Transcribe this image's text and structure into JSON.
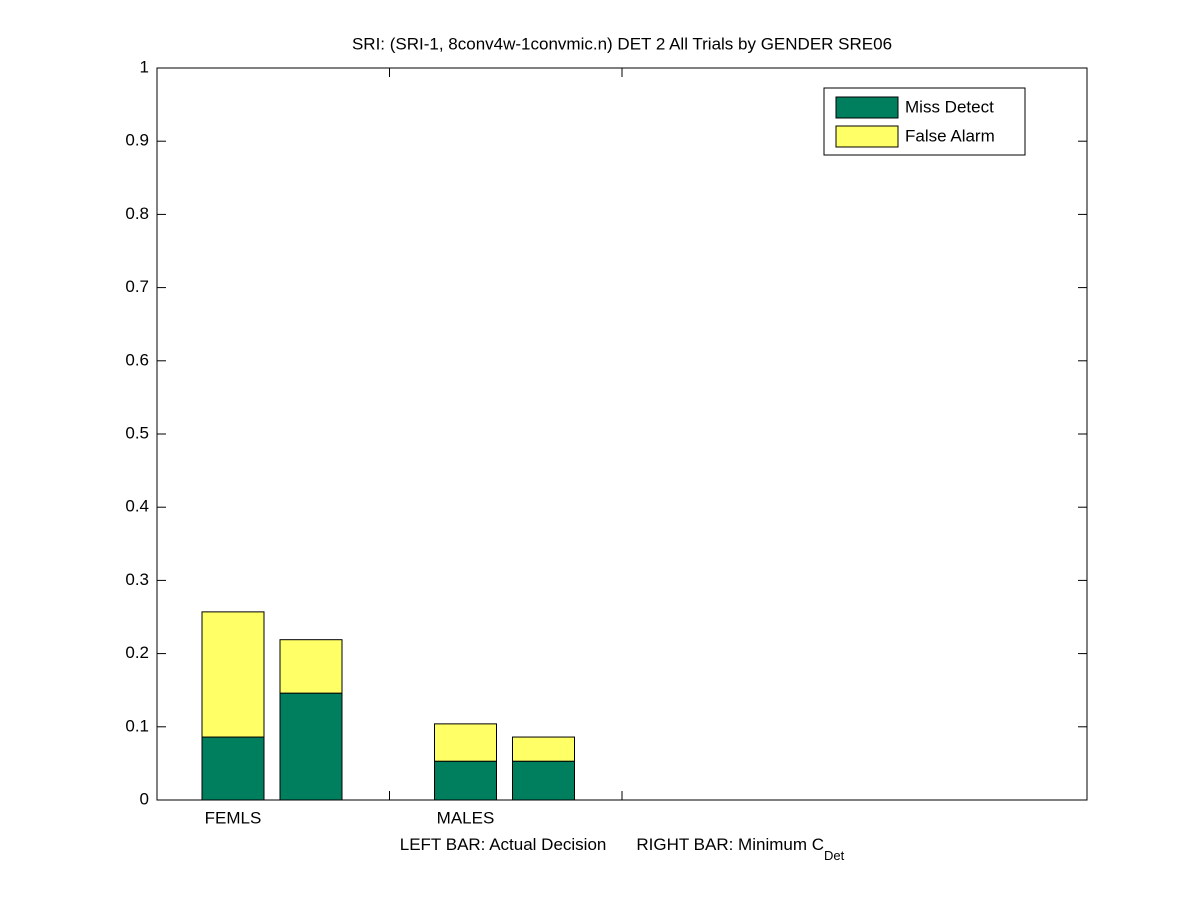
{
  "chart_data": {
    "type": "stacked_grouped_bar",
    "title": "SRI: (SRI-1, 8conv4w-1convmic.n) DET 2 All Trials by GENDER SRE06",
    "xlabel": {
      "left": "LEFT BAR: Actual Decision",
      "right": "RIGHT BAR: Minimum C",
      "subscript": "Det"
    },
    "categories": [
      "FEMLS",
      "MALES"
    ],
    "series": [
      {
        "name": "Miss Detect",
        "color": "#007f5f",
        "values": [
          [
            0.086,
            0.146
          ],
          [
            0.053,
            0.053
          ]
        ]
      },
      {
        "name": "False Alarm",
        "color": "#ffff66",
        "values": [
          [
            0.171,
            0.073
          ],
          [
            0.051,
            0.033
          ]
        ]
      }
    ],
    "ylim": [
      0,
      1
    ],
    "yticks": [
      0,
      0.1,
      0.2,
      0.3,
      0.4,
      0.5,
      0.6,
      0.7,
      0.8,
      0.9,
      1
    ],
    "legend": "upper right"
  }
}
